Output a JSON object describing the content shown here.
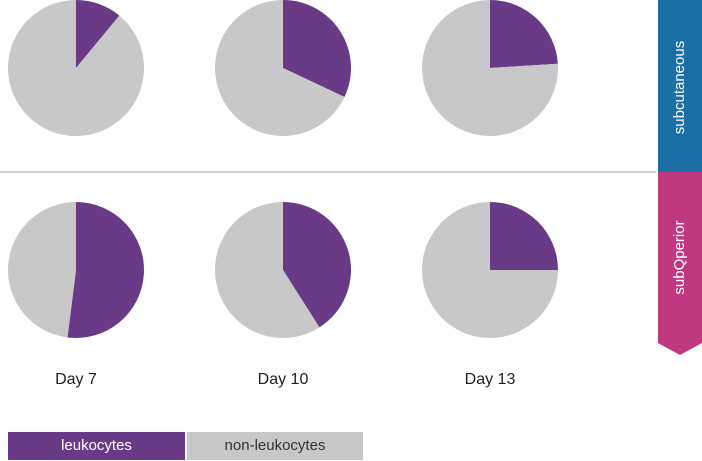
{
  "chart_data": {
    "type": "pie",
    "categories": [
      "leukocytes",
      "non-leukocytes"
    ],
    "colors": [
      "#6b3a86",
      "#c8c8ca"
    ],
    "columns": [
      "Day 7",
      "Day 10",
      "Day 13"
    ],
    "rows": [
      {
        "label": "subcutaneous",
        "color": "#1b6fa6",
        "values": [
          [
            11,
            89
          ],
          [
            32,
            68
          ],
          [
            24,
            76
          ]
        ]
      },
      {
        "label": "subQperior",
        "color": "#c0387f",
        "values": [
          [
            52,
            48
          ],
          [
            41,
            59
          ],
          [
            25,
            75
          ]
        ]
      }
    ]
  }
}
